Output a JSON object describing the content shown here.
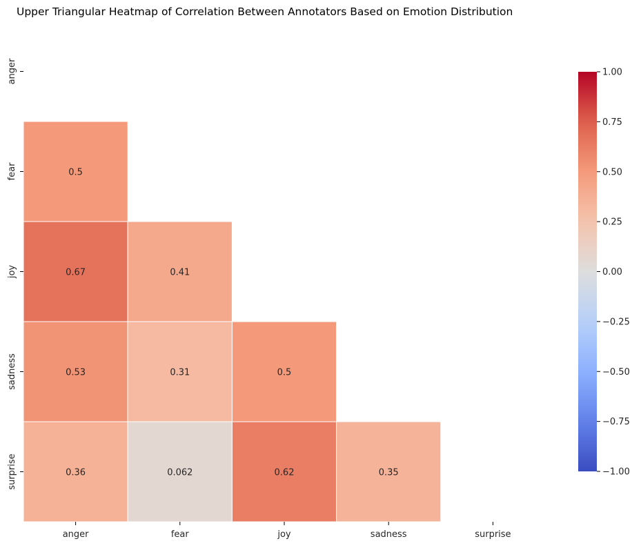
{
  "chart_data": {
    "type": "heatmap",
    "title": "Upper Triangular Heatmap of Correlation Between Annotators Based on Emotion Distribution",
    "xlabel": "",
    "ylabel": "",
    "x_labels": [
      "anger",
      "fear",
      "joy",
      "sadness",
      "surprise"
    ],
    "y_labels": [
      "anger",
      "fear",
      "joy",
      "sadness",
      "surprise"
    ],
    "mask": "upper-triangle-including-diagonal",
    "values": [
      [
        null,
        null,
        null,
        null,
        null
      ],
      [
        0.5,
        null,
        null,
        null,
        null
      ],
      [
        0.67,
        0.41,
        null,
        null,
        null
      ],
      [
        0.53,
        0.31,
        0.5,
        null,
        null
      ],
      [
        0.36,
        0.062,
        0.62,
        0.35,
        null
      ]
    ],
    "annotations": [
      [
        null,
        null,
        null,
        null,
        null
      ],
      [
        "0.5",
        null,
        null,
        null,
        null
      ],
      [
        "0.67",
        "0.41",
        null,
        null,
        null
      ],
      [
        "0.53",
        "0.31",
        "0.5",
        null,
        null
      ],
      [
        "0.36",
        "0.062",
        "0.62",
        "0.35",
        null
      ]
    ],
    "colormap": "coolwarm",
    "vmin": -1,
    "vmax": 1,
    "colorbar": {
      "ticks": [
        1.0,
        0.75,
        0.5,
        0.25,
        0.0,
        -0.25,
        -0.5,
        -0.75,
        -1.0
      ],
      "tick_labels": [
        "1.00",
        "0.75",
        "0.50",
        "0.25",
        "0.00",
        "−0.25",
        "−0.50",
        "−0.75",
        "−1.00"
      ]
    },
    "grid": false,
    "legend": "colorbar-right"
  }
}
